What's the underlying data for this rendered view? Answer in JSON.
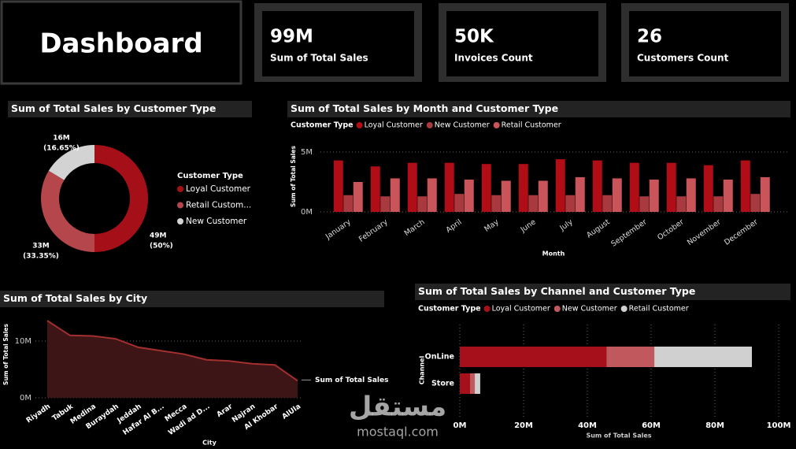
{
  "header": {
    "title": "Dashboard"
  },
  "kpis": [
    {
      "value": "99M",
      "label": "Sum of Total Sales",
      "color": "#c0141c"
    },
    {
      "value": "50K",
      "label": "Invoices Count",
      "color": "#1f7c85"
    },
    {
      "value": "26",
      "label": "Customers Count",
      "color": "#22b3aa"
    }
  ],
  "watermark": {
    "arabic": "مستقل",
    "latin": "mostaql.com"
  },
  "chart_data": [
    {
      "type": "pie",
      "donut": true,
      "title": "Sum of Total Sales by Customer Type",
      "legend_title": "Customer Type",
      "categories": [
        "Loyal Customer",
        "Retail Custom...",
        "New Customer"
      ],
      "values": [
        49,
        33,
        16
      ],
      "value_labels": [
        "49M",
        "33M",
        "16M"
      ],
      "percent_labels": [
        "(50%)",
        "(33.35%)",
        "(16.65%)"
      ],
      "colors": [
        "#a50f17",
        "#b5464c",
        "#d3d3d3"
      ]
    },
    {
      "type": "bar",
      "title": "Sum of Total Sales by Month and Customer Type",
      "legend_title": "Customer Type",
      "x_label": "Month",
      "y_label": "Sum of Total Sales",
      "categories": [
        "January",
        "February",
        "March",
        "April",
        "May",
        "June",
        "July",
        "August",
        "September",
        "October",
        "November",
        "December"
      ],
      "series": [
        {
          "name": "Loyal Customer",
          "color": "#b00d17",
          "values": [
            4.3,
            3.8,
            4.1,
            4.1,
            4.0,
            4.0,
            4.4,
            4.3,
            4.1,
            4.1,
            3.9,
            4.3
          ]
        },
        {
          "name": "New Customer",
          "color": "#a8393e",
          "values": [
            1.4,
            1.3,
            1.3,
            1.5,
            1.4,
            1.4,
            1.4,
            1.4,
            1.3,
            1.3,
            1.3,
            1.5
          ]
        },
        {
          "name": "Retail Customer",
          "color": "#c9555a",
          "values": [
            2.5,
            2.8,
            2.8,
            2.7,
            2.6,
            2.6,
            2.9,
            2.8,
            2.7,
            2.8,
            2.7,
            2.9
          ]
        }
      ],
      "ylim": [
        0,
        5
      ],
      "yticks": [
        {
          "value": 0,
          "label": "0M"
        },
        {
          "value": 5,
          "label": "5M"
        }
      ],
      "grid": true
    },
    {
      "type": "area",
      "title": "Sum of Total Sales by City",
      "x_label": "City",
      "y_label": "Sum of Total Sales",
      "categories": [
        "Riyadh",
        "Tabuk",
        "Medina",
        "Buraydah",
        "Jeddah",
        "Hafar Al B...",
        "Mecca",
        "Wadi ad D...",
        "Arar",
        "Najran",
        "Al Khobar",
        "AlUla"
      ],
      "series": [
        {
          "name": "Sum of Total Sales",
          "color": "#a3302f",
          "values": [
            13.6,
            11.0,
            10.9,
            10.4,
            8.9,
            8.3,
            7.7,
            6.7,
            6.5,
            6.0,
            5.8,
            3.0
          ]
        }
      ],
      "ylim": [
        0,
        14.5
      ],
      "yticks": [
        {
          "value": 0,
          "label": "0M"
        },
        {
          "value": 10,
          "label": "10M"
        }
      ],
      "grid": true
    },
    {
      "type": "stacked_bar",
      "orientation": "horizontal",
      "title": "Sum of Total Sales by Channel and Customer Type",
      "legend_title": "Customer Type",
      "x_label": "Sum of Total Sales",
      "y_label": "Channel",
      "categories": [
        "OnLine",
        "Store"
      ],
      "series": [
        {
          "name": "Loyal Customer",
          "color": "#a5101a",
          "values": [
            46,
            3.2
          ]
        },
        {
          "name": "New Customer",
          "color": "#c0585d",
          "values": [
            15,
            1.5
          ]
        },
        {
          "name": "Retail Customer",
          "color": "#d0d0d0",
          "values": [
            30.6,
            1.7
          ]
        }
      ],
      "xlim": [
        0,
        100
      ],
      "xticks": [
        {
          "value": 0,
          "label": "0M"
        },
        {
          "value": 20,
          "label": "20M"
        },
        {
          "value": 40,
          "label": "40M"
        },
        {
          "value": 60,
          "label": "60M"
        },
        {
          "value": 80,
          "label": "80M"
        },
        {
          "value": 100,
          "label": "100M"
        }
      ],
      "grid": true
    }
  ]
}
